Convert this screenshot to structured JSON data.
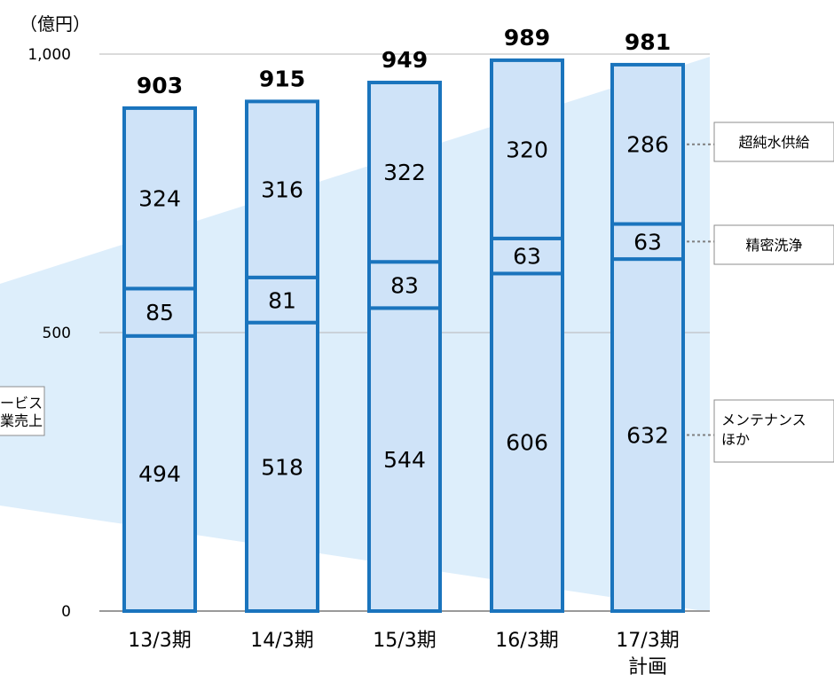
{
  "chart_data": {
    "type": "bar",
    "stacked": true,
    "unit_label": "（億円）",
    "categories": [
      "13/3期",
      "14/3期",
      "15/3期",
      "16/3期",
      "17/3期\n計画"
    ],
    "series": [
      {
        "name": "メンテナンス\nほか",
        "values": [
          494,
          518,
          544,
          606,
          632
        ]
      },
      {
        "name": "精密洗浄",
        "values": [
          85,
          81,
          83,
          63,
          63
        ]
      },
      {
        "name": "超純水供給",
        "values": [
          324,
          316,
          322,
          320,
          286
        ]
      }
    ],
    "totals": [
      903,
      915,
      949,
      989,
      981
    ],
    "yticks": [
      "0",
      "500",
      "1,000"
    ],
    "ytick_values": [
      0,
      500,
      1000
    ],
    "ylim": [
      0,
      1000
    ],
    "grid": true,
    "background_label": "ービス\n業売上",
    "colors": {
      "bar_fill": "#cfe3f8",
      "bar_stroke": "#1a74bd",
      "band": "#ddeefb",
      "grid": "#b7b7b7"
    }
  }
}
